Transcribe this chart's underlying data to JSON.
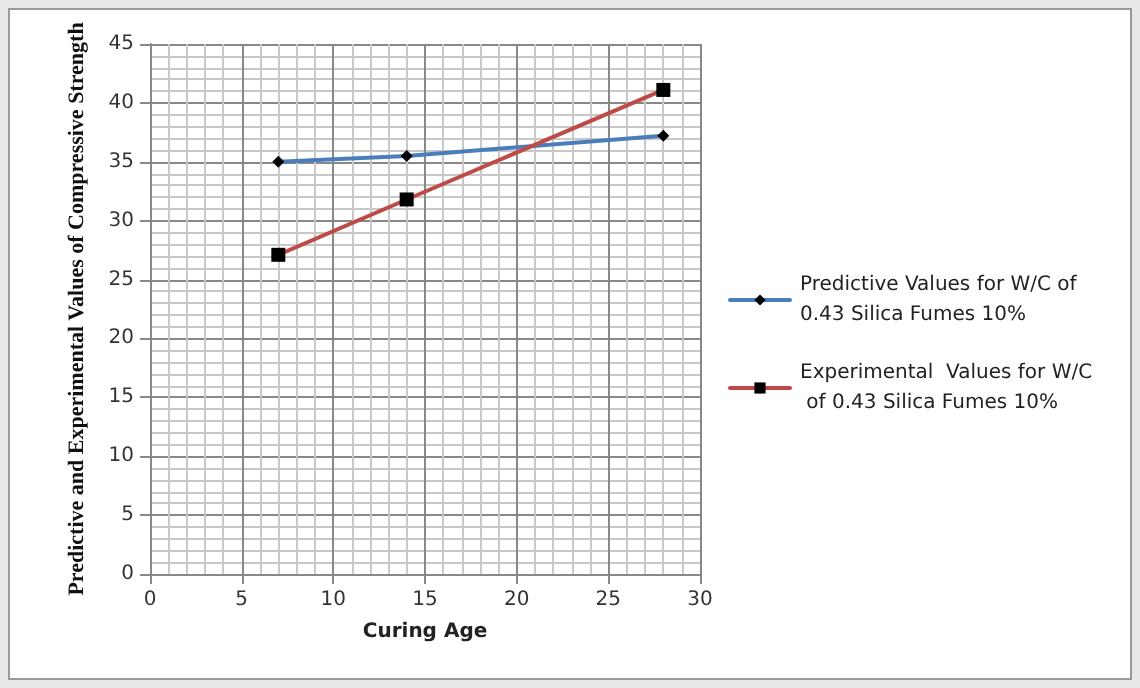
{
  "chart_data": {
    "type": "line",
    "xlabel": "Curing Age",
    "ylabel": "Predictive and Experimental Values of Compressive Strength",
    "x": [
      7,
      14,
      28
    ],
    "series": [
      {
        "name": "Predictive Values for W/C of 0.43 Silica Fumes 10%",
        "color": "#4a7ebb",
        "values": [
          35.0,
          35.5,
          37.2
        ],
        "marker": "diamond"
      },
      {
        "name": "Experimental  Values for W/C of 0.43 Silica Fumes 10%",
        "color": "#be4b48",
        "values": [
          27.1,
          31.8,
          41.1
        ],
        "marker": "square"
      }
    ],
    "xlim": [
      0,
      30
    ],
    "xticks": [
      0,
      5,
      10,
      15,
      20,
      25,
      30
    ],
    "ylim": [
      0,
      45
    ],
    "yticks": [
      0,
      5,
      10,
      15,
      20,
      25,
      30,
      35,
      40,
      45
    ],
    "grid": true,
    "legend": "right",
    "line_style": "solid"
  }
}
